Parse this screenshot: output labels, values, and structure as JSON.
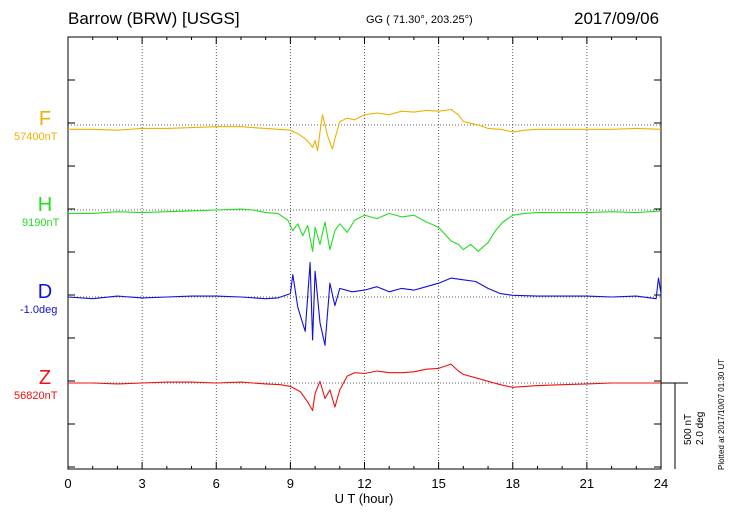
{
  "header": {
    "station": "Barrow (BRW)  [USGS]",
    "coords": "GG ( 71.30°, 203.25°)",
    "date": "2017/09/06"
  },
  "footer": {
    "plotted": "Plotted at 2017/10/07 01:30 UT"
  },
  "scale": {
    "nt": "500 nT",
    "deg": "2.0 deg"
  },
  "chart_data": {
    "type": "line",
    "xlabel": "U T (hour)",
    "xlim": [
      0,
      24
    ],
    "xticks": [
      "0",
      "3",
      "6",
      "9",
      "12",
      "15",
      "18",
      "21",
      "24"
    ],
    "grid": true,
    "series": [
      {
        "name": "F",
        "baseline": "57400nT",
        "color": "#f0b000",
        "points": [
          [
            0,
            -25
          ],
          [
            1,
            -25
          ],
          [
            2,
            -30
          ],
          [
            3,
            -20
          ],
          [
            4,
            -20
          ],
          [
            5,
            -15
          ],
          [
            6,
            -10
          ],
          [
            7,
            -10
          ],
          [
            7.5,
            -15
          ],
          [
            8,
            -20
          ],
          [
            8.5,
            -25
          ],
          [
            9,
            -30
          ],
          [
            9.3,
            -50
          ],
          [
            9.6,
            -80
          ],
          [
            9.8,
            -110
          ],
          [
            9.9,
            -130
          ],
          [
            10.0,
            -90
          ],
          [
            10.1,
            -150
          ],
          [
            10.2,
            -40
          ],
          [
            10.3,
            60
          ],
          [
            10.4,
            0
          ],
          [
            10.5,
            -60
          ],
          [
            10.7,
            -140
          ],
          [
            10.8,
            -80
          ],
          [
            11,
            20
          ],
          [
            11.3,
            40
          ],
          [
            11.6,
            30
          ],
          [
            12,
            60
          ],
          [
            12.5,
            70
          ],
          [
            13,
            60
          ],
          [
            13.5,
            80
          ],
          [
            14,
            75
          ],
          [
            14.5,
            85
          ],
          [
            15,
            80
          ],
          [
            15.5,
            90
          ],
          [
            15.8,
            60
          ],
          [
            16,
            20
          ],
          [
            16.3,
            10
          ],
          [
            16.6,
            0
          ],
          [
            17,
            -20
          ],
          [
            17.5,
            -25
          ],
          [
            18,
            -40
          ],
          [
            18.5,
            -30
          ],
          [
            19,
            -25
          ],
          [
            20,
            -25
          ],
          [
            21,
            -25
          ],
          [
            22,
            -25
          ],
          [
            23,
            -20
          ],
          [
            24,
            -25
          ]
        ]
      },
      {
        "name": "H",
        "baseline": "9190nT",
        "color": "#22dd22",
        "points": [
          [
            0,
            -20
          ],
          [
            1,
            -20
          ],
          [
            2,
            -10
          ],
          [
            3,
            -15
          ],
          [
            4,
            -10
          ],
          [
            5,
            -5
          ],
          [
            6,
            0
          ],
          [
            7,
            5
          ],
          [
            7.5,
            0
          ],
          [
            8,
            -15
          ],
          [
            8.5,
            -20
          ],
          [
            8.9,
            -60
          ],
          [
            9.1,
            -120
          ],
          [
            9.3,
            -80
          ],
          [
            9.5,
            -150
          ],
          [
            9.7,
            -90
          ],
          [
            9.9,
            -240
          ],
          [
            10.0,
            -100
          ],
          [
            10.2,
            -200
          ],
          [
            10.4,
            -70
          ],
          [
            10.6,
            -230
          ],
          [
            10.8,
            -120
          ],
          [
            11,
            -80
          ],
          [
            11.3,
            -130
          ],
          [
            11.6,
            -60
          ],
          [
            12,
            -30
          ],
          [
            12.5,
            -50
          ],
          [
            13,
            -20
          ],
          [
            13.5,
            -40
          ],
          [
            14,
            -30
          ],
          [
            14.5,
            -70
          ],
          [
            15,
            -100
          ],
          [
            15.5,
            -180
          ],
          [
            15.8,
            -200
          ],
          [
            16,
            -230
          ],
          [
            16.3,
            -200
          ],
          [
            16.6,
            -240
          ],
          [
            17,
            -190
          ],
          [
            17.3,
            -120
          ],
          [
            17.6,
            -70
          ],
          [
            18,
            -30
          ],
          [
            18.5,
            -20
          ],
          [
            19,
            -15
          ],
          [
            20,
            -15
          ],
          [
            21,
            -15
          ],
          [
            22,
            -10
          ],
          [
            23,
            -15
          ],
          [
            24,
            -5
          ]
        ]
      },
      {
        "name": "D",
        "baseline": "-1.0deg",
        "color": "#1010dd",
        "points": [
          [
            0,
            0
          ],
          [
            1,
            -10
          ],
          [
            2,
            5
          ],
          [
            3,
            -5
          ],
          [
            4,
            0
          ],
          [
            5,
            5
          ],
          [
            6,
            5
          ],
          [
            7,
            0
          ],
          [
            8,
            -10
          ],
          [
            8.5,
            -5
          ],
          [
            9,
            20
          ],
          [
            9.1,
            130
          ],
          [
            9.3,
            -60
          ],
          [
            9.6,
            -200
          ],
          [
            9.8,
            200
          ],
          [
            9.9,
            -250
          ],
          [
            10.0,
            150
          ],
          [
            10.2,
            -150
          ],
          [
            10.4,
            -280
          ],
          [
            10.6,
            80
          ],
          [
            10.8,
            -50
          ],
          [
            11,
            50
          ],
          [
            11.5,
            30
          ],
          [
            12,
            40
          ],
          [
            12.5,
            60
          ],
          [
            13,
            30
          ],
          [
            13.5,
            50
          ],
          [
            14,
            40
          ],
          [
            14.5,
            60
          ],
          [
            15,
            80
          ],
          [
            15.5,
            110
          ],
          [
            16,
            100
          ],
          [
            16.5,
            90
          ],
          [
            17,
            50
          ],
          [
            17.5,
            20
          ],
          [
            18,
            10
          ],
          [
            19,
            5
          ],
          [
            20,
            5
          ],
          [
            21,
            5
          ],
          [
            22,
            0
          ],
          [
            23,
            5
          ],
          [
            23.8,
            -10
          ],
          [
            23.9,
            110
          ],
          [
            24,
            20
          ]
        ]
      },
      {
        "name": "Z",
        "baseline": "56820nT",
        "color": "#ee1111",
        "points": [
          [
            0,
            0
          ],
          [
            1,
            0
          ],
          [
            2,
            -5
          ],
          [
            3,
            0
          ],
          [
            4,
            5
          ],
          [
            5,
            5
          ],
          [
            6,
            0
          ],
          [
            7,
            5
          ],
          [
            8,
            -5
          ],
          [
            8.6,
            -10
          ],
          [
            9,
            -20
          ],
          [
            9.4,
            -50
          ],
          [
            9.7,
            -110
          ],
          [
            9.9,
            -160
          ],
          [
            10.0,
            -60
          ],
          [
            10.2,
            10
          ],
          [
            10.4,
            -90
          ],
          [
            10.6,
            -40
          ],
          [
            10.8,
            -140
          ],
          [
            11,
            -40
          ],
          [
            11.3,
            40
          ],
          [
            11.6,
            60
          ],
          [
            12,
            55
          ],
          [
            12.5,
            70
          ],
          [
            13,
            60
          ],
          [
            13.5,
            60
          ],
          [
            14,
            65
          ],
          [
            14.5,
            80
          ],
          [
            15,
            85
          ],
          [
            15.5,
            110
          ],
          [
            15.8,
            70
          ],
          [
            16,
            50
          ],
          [
            16.5,
            30
          ],
          [
            17,
            10
          ],
          [
            17.5,
            -10
          ],
          [
            18,
            -25
          ],
          [
            18.5,
            -20
          ],
          [
            19,
            -15
          ],
          [
            20,
            -10
          ],
          [
            21,
            -5
          ],
          [
            22,
            0
          ],
          [
            23,
            0
          ],
          [
            24,
            0
          ]
        ]
      }
    ]
  }
}
